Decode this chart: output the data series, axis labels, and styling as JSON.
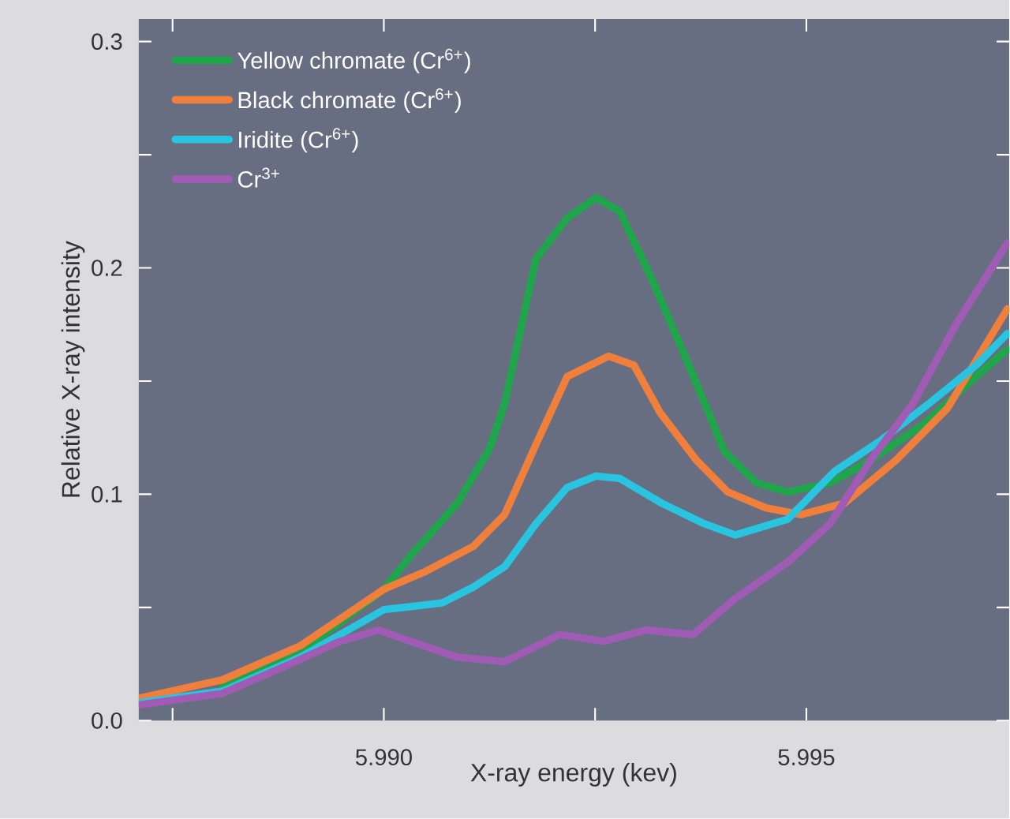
{
  "chart_data": {
    "type": "line",
    "xlabel": "X-ray energy (kev)",
    "ylabel": "Relative X-ray intensity",
    "xlim": [
      5.9871,
      5.9974
    ],
    "ylim": [
      0,
      0.31
    ],
    "xticks": [
      {
        "value": 5.9875,
        "label": null
      },
      {
        "value": 5.99,
        "label": "5.990"
      },
      {
        "value": 5.9925,
        "label": null
      },
      {
        "value": 5.995,
        "label": "5.995"
      }
    ],
    "yticks": [
      {
        "value": 0,
        "label": "0.0"
      },
      {
        "value": 0.05,
        "label": null
      },
      {
        "value": 0.1,
        "label": "0.1"
      },
      {
        "value": 0.15,
        "label": null
      },
      {
        "value": 0.2,
        "label": "0.2"
      },
      {
        "value": 0.25,
        "label": null
      },
      {
        "value": 0.3,
        "label": "0.3"
      }
    ],
    "legend": "top left",
    "line_style": "solid",
    "marker": "none",
    "series": [
      {
        "name": "Yellow chromate (Cr$^{6+}$)",
        "color": "#1fa64a",
        "x": [
          5.98809,
          5.98901,
          5.99,
          5.99032,
          5.99087,
          5.99125,
          5.99143,
          5.9918,
          5.99217,
          5.99251,
          5.99279,
          5.99316,
          5.99361,
          5.99403,
          5.99441,
          5.99478,
          5.99528,
          5.99576,
          5.99639,
          5.99701,
          5.99738
        ],
        "values": [
          0.015,
          0.03,
          0.058,
          0.073,
          0.096,
          0.12,
          0.14,
          0.204,
          0.222,
          0.231,
          0.225,
          0.196,
          0.157,
          0.119,
          0.105,
          0.101,
          0.105,
          0.115,
          0.131,
          0.152,
          0.164
        ]
      },
      {
        "name": "Black chromate (Cr$^{6+}$)",
        "color": "#f07f3c",
        "x": [
          5.98712,
          5.98809,
          5.98901,
          5.99,
          5.9905,
          5.99106,
          5.99143,
          5.9918,
          5.99217,
          5.99266,
          5.99296,
          5.99327,
          5.9937,
          5.99407,
          5.99452,
          5.99494,
          5.99545,
          5.99606,
          5.99667,
          5.99738
        ],
        "values": [
          0.01,
          0.018,
          0.033,
          0.058,
          0.066,
          0.077,
          0.091,
          0.122,
          0.152,
          0.161,
          0.157,
          0.136,
          0.115,
          0.101,
          0.094,
          0.091,
          0.096,
          0.115,
          0.138,
          0.182
        ]
      },
      {
        "name": "Iridite (Cr$^{6+}$)",
        "color": "#29c4e0",
        "x": [
          5.98712,
          5.98809,
          5.98901,
          5.99,
          5.99069,
          5.99106,
          5.99143,
          5.9918,
          5.99217,
          5.99251,
          5.99279,
          5.99329,
          5.99379,
          5.99416,
          5.99478,
          5.99533,
          5.99589,
          5.99645,
          5.99701,
          5.99738
        ],
        "values": [
          0.008,
          0.013,
          0.028,
          0.049,
          0.052,
          0.059,
          0.068,
          0.087,
          0.103,
          0.108,
          0.107,
          0.096,
          0.087,
          0.082,
          0.089,
          0.11,
          0.124,
          0.14,
          0.157,
          0.171
        ]
      },
      {
        "name": "Cr$^{3+}$",
        "color": "#a05cb4",
        "x": [
          5.98712,
          5.98809,
          5.98883,
          5.98948,
          5.98994,
          5.99032,
          5.99087,
          5.99143,
          5.99208,
          5.9926,
          5.9931,
          5.99366,
          5.99416,
          5.99478,
          5.99528,
          5.99576,
          5.99626,
          5.99677,
          5.99738
        ],
        "values": [
          0.007,
          0.012,
          0.024,
          0.035,
          0.04,
          0.035,
          0.028,
          0.026,
          0.038,
          0.035,
          0.04,
          0.038,
          0.054,
          0.07,
          0.087,
          0.115,
          0.14,
          0.175,
          0.211
        ]
      }
    ]
  }
}
